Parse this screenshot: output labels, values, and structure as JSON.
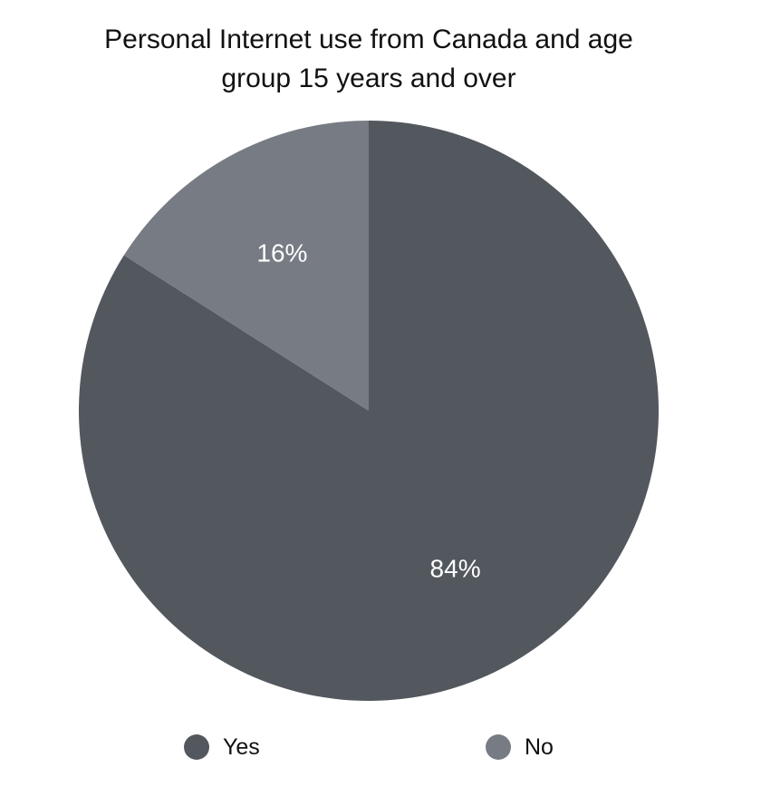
{
  "chart_data": {
    "type": "pie",
    "title": "Personal Internet use from Canada and age group 15 years and over",
    "categories": [
      "Yes",
      "No"
    ],
    "values": [
      84,
      16
    ],
    "labels": [
      "84%",
      "16%"
    ],
    "colors": [
      "#53575e",
      "#777c84"
    ],
    "start_angle": "12 o'clock",
    "direction": "clockwise",
    "legend_position": "bottom"
  }
}
